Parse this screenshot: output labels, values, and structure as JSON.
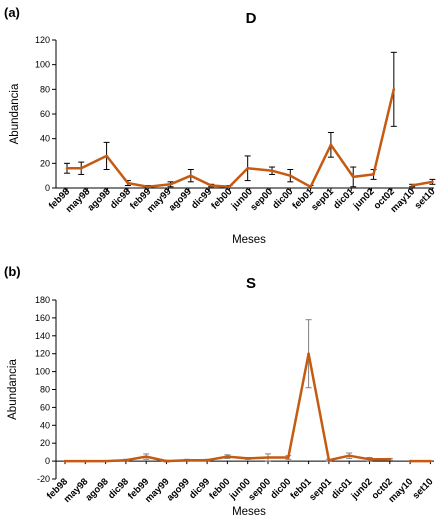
{
  "panel_letters": [
    "(a)",
    "(b)"
  ],
  "chart_data": [
    {
      "type": "line",
      "title": "D",
      "xlabel": "Meses",
      "ylabel": "Abundancia",
      "ylim": [
        0,
        120
      ],
      "y_ticks": [
        "0",
        "20",
        "40",
        "60",
        "80",
        "100",
        "120"
      ],
      "grid": false,
      "legend": "none",
      "x_tick_labels": [
        "feb98",
        "may98",
        "ago98",
        "dic98",
        "feb99",
        "may99",
        "ago99",
        "dic99",
        "feb00",
        "jun00",
        "sep00",
        "dic00",
        "feb01",
        "sep01",
        "dic01",
        "jun02",
        "oct02",
        "may10",
        "set10"
      ],
      "series": [
        {
          "color": "#c55a11",
          "errorbar_color": "#000000",
          "segments": [
            [
              0,
              16
            ]
          ],
          "points": [
            {
              "x": 0,
              "y": 16,
              "err": 4
            },
            {
              "x": 0.7,
              "y": 16,
              "err": 5
            },
            {
              "x": 1.95,
              "y": 26,
              "err": 11
            },
            {
              "x": 3,
              "y": 4,
              "err": 2
            },
            {
              "x": 4,
              "y": 1,
              "err": 1
            },
            {
              "x": 5.1,
              "y": 3,
              "err": 2
            },
            {
              "x": 6.1,
              "y": 10,
              "err": 5
            },
            {
              "x": 7.1,
              "y": 2,
              "err": 1
            },
            {
              "x": 8,
              "y": 1,
              "err": 1
            },
            {
              "x": 8.9,
              "y": 16,
              "err": 10
            },
            {
              "x": 10.1,
              "y": 14,
              "err": 3
            },
            {
              "x": 11,
              "y": 10,
              "err": 5
            },
            {
              "x": 12,
              "y": 1,
              "err": 1
            },
            {
              "x": 13,
              "y": 35,
              "err": 10
            },
            {
              "x": 14.1,
              "y": 9,
              "err": 8
            },
            {
              "x": 15.1,
              "y": 11,
              "err": 4
            },
            {
              "x": 16.1,
              "y": 80,
              "err": 30
            },
            {
              "x": 17,
              "y": 2,
              "err": 1
            },
            {
              "x": 18,
              "y": 5,
              "err": 2
            }
          ],
          "breaks_after": [
            16
          ]
        }
      ]
    },
    {
      "type": "line",
      "title": "S",
      "xlabel": "Meses",
      "ylabel": "Abundancia",
      "ylim": [
        -20,
        180
      ],
      "y_ticks": [
        "-20",
        "0",
        "20",
        "40",
        "60",
        "80",
        "100",
        "120",
        "140",
        "160",
        "180"
      ],
      "grid": false,
      "legend": "none",
      "x_tick_labels": [
        "feb98",
        "may98",
        "ago98",
        "dic98",
        "feb99",
        "may99",
        "ago99",
        "dic99",
        "feb00",
        "jun00",
        "sep00",
        "dic00",
        "feb01",
        "sep01",
        "dic01",
        "jun02",
        "oct02",
        "may10",
        "set10"
      ],
      "series": [
        {
          "color": "#c55a11",
          "errorbar_color": "#7f7f7f",
          "points": [
            {
              "x": 0,
              "y": 0,
              "err": 0
            },
            {
              "x": 1,
              "y": 0,
              "err": 0
            },
            {
              "x": 2,
              "y": 0,
              "err": 0
            },
            {
              "x": 3,
              "y": 1,
              "err": 1
            },
            {
              "x": 4,
              "y": 5,
              "err": 3
            },
            {
              "x": 5,
              "y": 0,
              "err": 1
            },
            {
              "x": 6,
              "y": 1,
              "err": 1
            },
            {
              "x": 7,
              "y": 1,
              "err": 1
            },
            {
              "x": 8,
              "y": 5,
              "err": 2
            },
            {
              "x": 9,
              "y": 3,
              "err": 1
            },
            {
              "x": 10,
              "y": 4,
              "err": 4
            },
            {
              "x": 11,
              "y": 4,
              "err": 2
            },
            {
              "x": 12,
              "y": 120,
              "err": 38
            },
            {
              "x": 13,
              "y": 1,
              "err": 1
            },
            {
              "x": 14,
              "y": 6,
              "err": 3
            },
            {
              "x": 15,
              "y": 2,
              "err": 2
            },
            {
              "x": 16,
              "y": 2,
              "err": 1
            },
            {
              "x": 17,
              "y": 0,
              "err": 0
            },
            {
              "x": 18,
              "y": 0,
              "err": 0
            }
          ],
          "breaks_after": [
            16
          ]
        }
      ]
    }
  ]
}
